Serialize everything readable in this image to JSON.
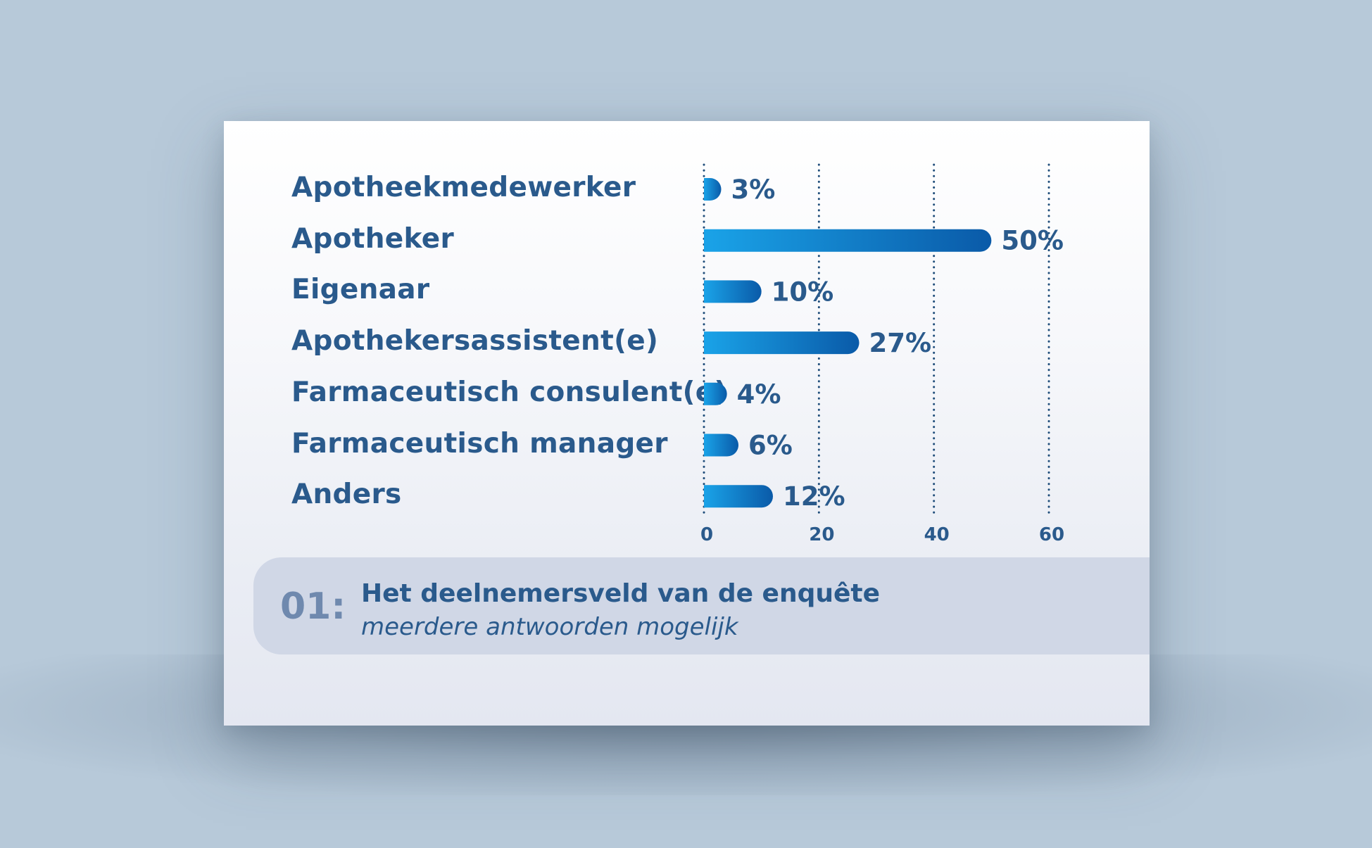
{
  "chart_data": {
    "type": "bar",
    "orientation": "horizontal",
    "categories": [
      "Apotheekmedewerker",
      "Apotheker",
      "Eigenaar",
      "Apothekersassistent(e)",
      "Farmaceutisch consulent(e)",
      "Farmaceutisch manager",
      "Anders"
    ],
    "values": [
      3,
      50,
      10,
      27,
      4,
      6,
      12
    ],
    "value_labels": [
      "3%",
      "50%",
      "10%",
      "27%",
      "4%",
      "6%",
      "12%"
    ],
    "xlim": [
      0,
      60
    ],
    "xticks": [
      0,
      20,
      40,
      60
    ],
    "xtick_labels": [
      "0",
      "20",
      "40",
      "60"
    ],
    "grid": "vertical dotted",
    "colors": {
      "bar_start": "#1aa3e8",
      "bar_end": "#0a5aa8",
      "text": "#2a5a8c",
      "grid": "#1f4d7a"
    }
  },
  "caption": {
    "number": "01:",
    "title": "Het deelnemersveld van de enquête",
    "subtitle": "meerdere antwoorden mogelijk"
  }
}
